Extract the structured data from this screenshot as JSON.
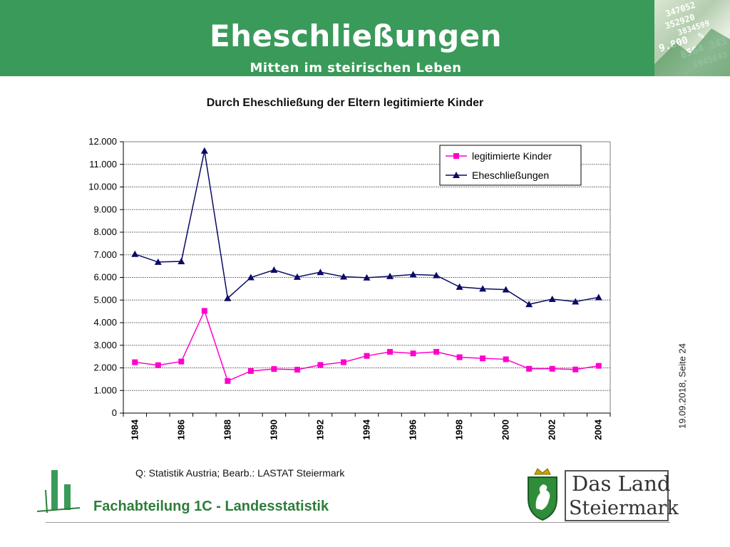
{
  "header": {
    "title": "Eheschließungen",
    "subtitle": "Mitten im steirischen Leben",
    "deco_text": [
      "347052",
      "352920",
      "3834599",
      "9.800",
      "%",
      "8564 343",
      "1945843"
    ]
  },
  "side": {
    "date_page": "19.09.2018, Seite 24"
  },
  "footer": {
    "source": "Q: Statistik Austria; Bearb.: LASTAT Steiermark",
    "department": "Fachabteilung 1C -  Landesstatistik",
    "land_line1": "Das Land",
    "land_line2": "Steiermark",
    "green": "#2e7d3a"
  },
  "chart_data": {
    "type": "line",
    "title": "Durch Eheschließung der Eltern legitimierte Kinder",
    "xlabel": "",
    "ylabel": "",
    "x": [
      1984,
      1985,
      1986,
      1987,
      1988,
      1989,
      1990,
      1991,
      1992,
      1993,
      1994,
      1995,
      1996,
      1997,
      1998,
      1999,
      2000,
      2001,
      2002,
      2003,
      2004
    ],
    "x_tick_labels": [
      "1984",
      "1986",
      "1988",
      "1990",
      "1992",
      "1994",
      "1996",
      "1998",
      "2000",
      "2002",
      "2004"
    ],
    "y_tick_labels": [
      "0",
      "1.000",
      "2.000",
      "3.000",
      "4.000",
      "5.000",
      "6.000",
      "7.000",
      "8.000",
      "9.000",
      "10.000",
      "11.000",
      "12.000"
    ],
    "ylim": [
      0,
      12000
    ],
    "grid": true,
    "legend_position": "top-right",
    "series": [
      {
        "name": "legitimierte Kinder",
        "color": "#ff00cc",
        "marker": "square",
        "values": [
          2250,
          2120,
          2280,
          4520,
          1420,
          1860,
          1950,
          1920,
          2130,
          2250,
          2530,
          2710,
          2640,
          2710,
          2470,
          2420,
          2380,
          1960,
          1960,
          1930,
          2090
        ]
      },
      {
        "name": "Eheschließungen",
        "color": "#0a0a66",
        "marker": "triangle",
        "values": [
          7030,
          6680,
          6710,
          11600,
          5080,
          6000,
          6330,
          6020,
          6230,
          6030,
          5990,
          6050,
          6130,
          6090,
          5580,
          5500,
          5460,
          4810,
          5040,
          4930,
          5120
        ]
      }
    ]
  }
}
